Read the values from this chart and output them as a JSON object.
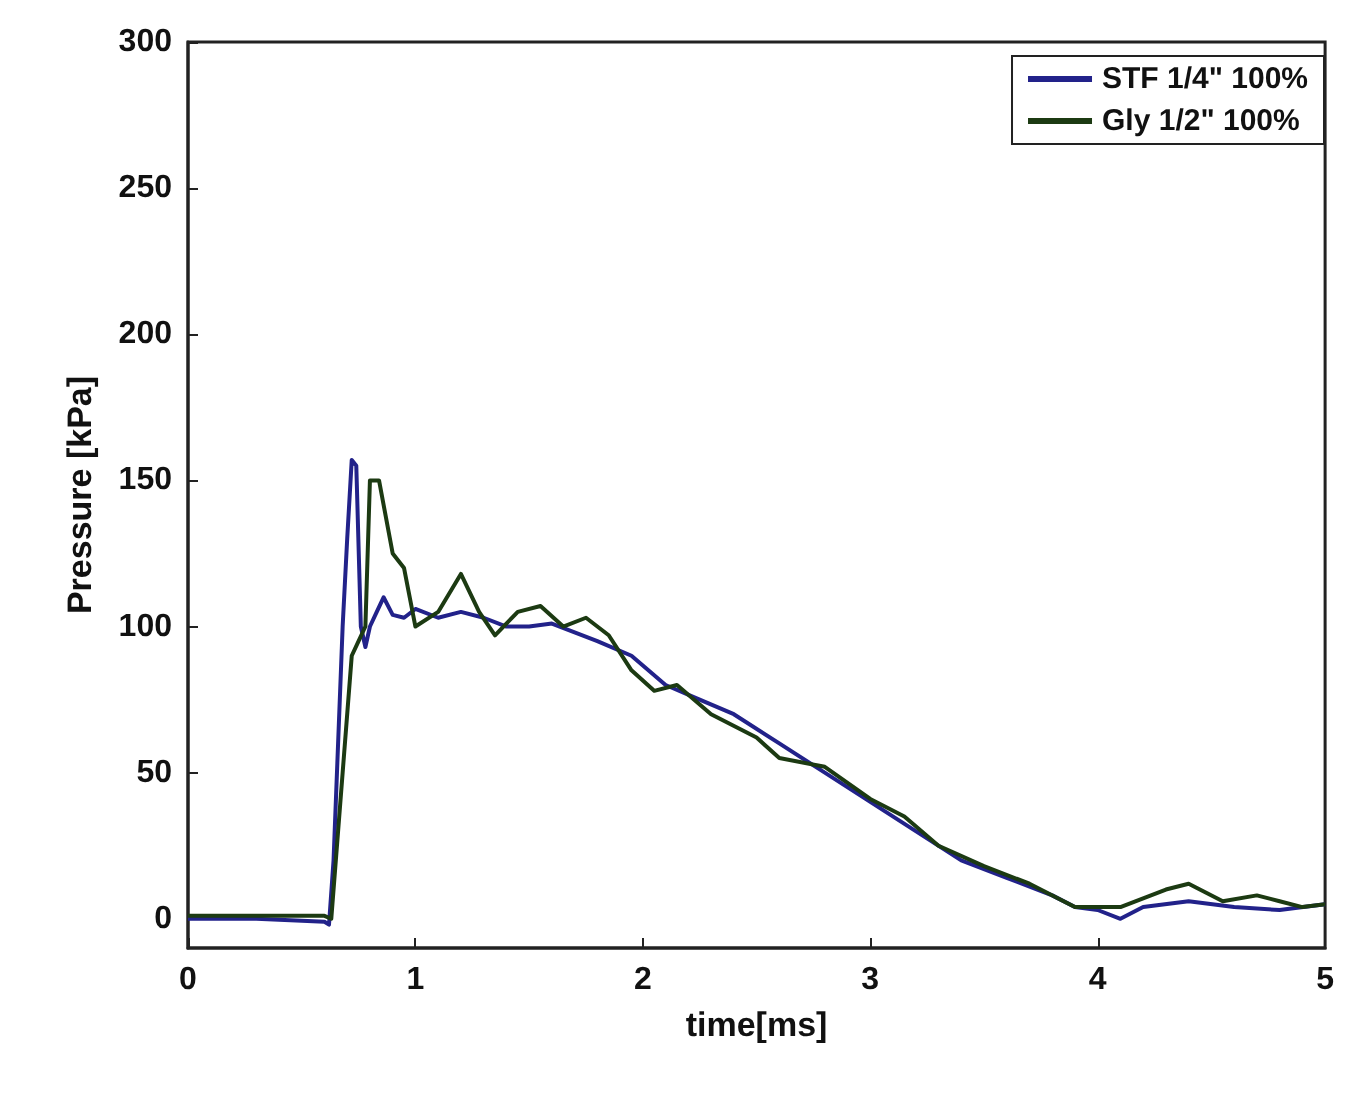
{
  "chart_data": {
    "type": "line",
    "xlabel": "time[ms]",
    "ylabel": "Pressure [kPa]",
    "xlim": [
      0,
      5
    ],
    "ylim": [
      -10,
      300
    ],
    "xticks": [
      0,
      1,
      2,
      3,
      4,
      5
    ],
    "yticks": [
      0,
      50,
      100,
      150,
      200,
      250,
      300
    ],
    "grid": false,
    "legend": "top right",
    "line_style": "solid",
    "marker": "none",
    "series": [
      {
        "name": "STF 1/4\" 100%",
        "color": "#22228a",
        "x": [
          0,
          0.3,
          0.6,
          0.62,
          0.64,
          0.66,
          0.68,
          0.7,
          0.72,
          0.74,
          0.76,
          0.78,
          0.8,
          0.83,
          0.86,
          0.9,
          0.95,
          1.0,
          1.1,
          1.2,
          1.3,
          1.4,
          1.5,
          1.6,
          1.7,
          1.8,
          1.95,
          2.1,
          2.25,
          2.4,
          2.6,
          2.8,
          3.0,
          3.2,
          3.4,
          3.6,
          3.8,
          3.9,
          4.0,
          4.1,
          4.2,
          4.4,
          4.6,
          4.8,
          5.0
        ],
        "values": [
          0,
          0,
          -1,
          -2,
          20,
          60,
          100,
          130,
          157,
          155,
          100,
          93,
          100,
          105,
          110,
          104,
          103,
          106,
          103,
          105,
          103,
          100,
          100,
          101,
          98,
          95,
          90,
          80,
          75,
          70,
          60,
          50,
          40,
          30,
          20,
          14,
          8,
          4,
          3,
          0,
          4,
          6,
          4,
          3,
          5
        ]
      },
      {
        "name": "Gly 1/2\" 100%",
        "color": "#1c3a12",
        "x": [
          0,
          0.3,
          0.6,
          0.63,
          0.66,
          0.68,
          0.72,
          0.75,
          0.78,
          0.8,
          0.84,
          0.9,
          0.95,
          1.0,
          1.1,
          1.2,
          1.28,
          1.35,
          1.45,
          1.55,
          1.65,
          1.75,
          1.85,
          1.95,
          2.05,
          2.15,
          2.3,
          2.5,
          2.6,
          2.8,
          3.0,
          3.15,
          3.3,
          3.5,
          3.7,
          3.9,
          4.1,
          4.3,
          4.4,
          4.55,
          4.7,
          4.8,
          4.9,
          5.0
        ],
        "values": [
          1,
          1,
          1,
          0,
          30,
          50,
          90,
          95,
          100,
          150,
          150,
          125,
          120,
          100,
          105,
          118,
          105,
          97,
          105,
          107,
          100,
          103,
          97,
          85,
          78,
          80,
          70,
          62,
          55,
          52,
          41,
          35,
          25,
          18,
          12,
          4,
          4,
          10,
          12,
          6,
          8,
          6,
          4,
          5
        ]
      }
    ]
  }
}
